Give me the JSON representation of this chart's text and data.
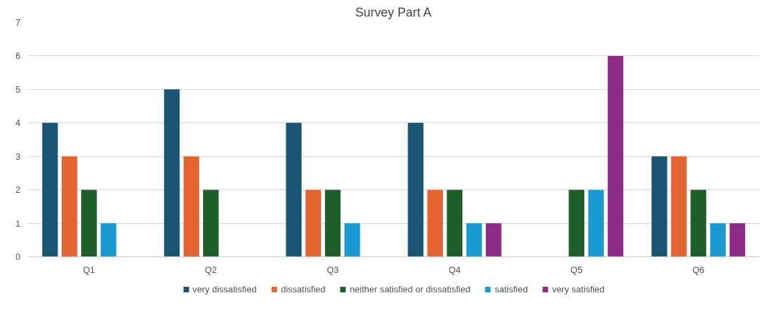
{
  "chart_data": {
    "type": "bar",
    "title": "Survey Part A",
    "categories": [
      "Q1",
      "Q2",
      "Q3",
      "Q4",
      "Q5",
      "Q6"
    ],
    "series": [
      {
        "name": "very dissatisfied",
        "color": "#1a5576",
        "values": [
          4,
          5,
          4,
          4,
          0,
          3
        ]
      },
      {
        "name": "dissatisfied",
        "color": "#e46532",
        "values": [
          3,
          3,
          2,
          2,
          0,
          3
        ]
      },
      {
        "name": "neither satisfied or dissatisfied",
        "color": "#1e5e2a",
        "values": [
          2,
          2,
          2,
          2,
          2,
          2
        ]
      },
      {
        "name": "satisfied",
        "color": "#1a9ad3",
        "values": [
          1,
          0,
          1,
          1,
          2,
          1
        ]
      },
      {
        "name": "very satisfied",
        "color": "#912b88",
        "values": [
          0,
          0,
          0,
          1,
          6,
          1
        ]
      }
    ],
    "ylim": [
      0,
      7
    ],
    "yticks": [
      0,
      1,
      2,
      3,
      4,
      5,
      6,
      7
    ],
    "grid": "y",
    "legend": "bottom"
  }
}
